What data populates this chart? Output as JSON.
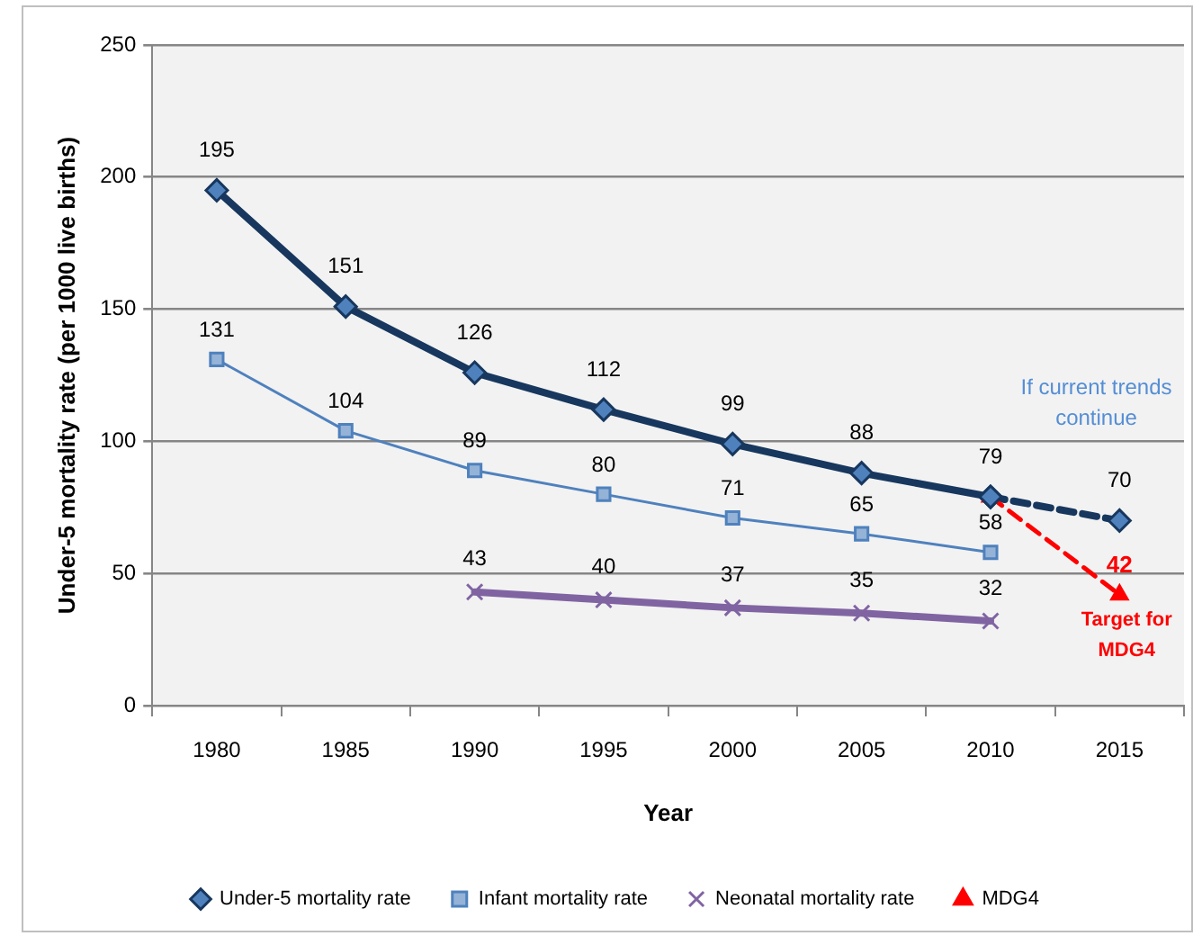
{
  "chart_data": {
    "type": "line",
    "categories": [
      "1980",
      "1985",
      "1990",
      "1995",
      "2000",
      "2005",
      "2010",
      "2015"
    ],
    "xlabel": "Year",
    "ylabel": "Under-5 mortality rate (per 1000 live births)",
    "ylim": [
      0,
      250
    ],
    "yticks": [
      0,
      50,
      100,
      150,
      200,
      250
    ],
    "grid": "y",
    "legend": "bottom",
    "series": [
      {
        "name": "Under-5 mortality rate",
        "color": "#17375e",
        "marker": "diamond",
        "line_style": "solid",
        "values": [
          195,
          151,
          126,
          112,
          99,
          88,
          79,
          null
        ],
        "value_labels": [
          "195",
          "151",
          "126",
          "112",
          "99",
          "88",
          "79",
          null
        ]
      },
      {
        "name": "Infant mortality rate",
        "color": "#4f81bd",
        "marker": "square",
        "line_style": "solid",
        "values": [
          131,
          104,
          89,
          80,
          71,
          65,
          58,
          null
        ],
        "value_labels": [
          "131",
          "104",
          "89",
          "80",
          "71",
          "65",
          "58",
          null
        ]
      },
      {
        "name": "Neonatal mortality rate",
        "color": "#8064a2",
        "marker": "cross",
        "line_style": "solid",
        "values": [
          null,
          null,
          43,
          40,
          37,
          35,
          32,
          null
        ],
        "value_labels": [
          null,
          null,
          "43",
          "40",
          "37",
          "35",
          "32",
          null
        ]
      },
      {
        "name": "MDG4",
        "color": "#ff0000",
        "marker": "triangle",
        "line_style": "dashed",
        "values": [
          null,
          null,
          null,
          null,
          null,
          null,
          79,
          42
        ],
        "value_labels": [
          null,
          null,
          null,
          null,
          null,
          null,
          null,
          "42"
        ]
      },
      {
        "color": "#17375e",
        "marker": "diamond",
        "line_style": "dashed",
        "values": [
          null,
          null,
          null,
          null,
          null,
          null,
          79,
          70
        ],
        "value_labels": [
          null,
          null,
          null,
          null,
          null,
          null,
          null,
          "70"
        ]
      }
    ],
    "annotations": [
      "If current trends continue",
      {
        "text": "Target for MDG4",
        "x": "2015",
        "y": 42
      }
    ]
  }
}
